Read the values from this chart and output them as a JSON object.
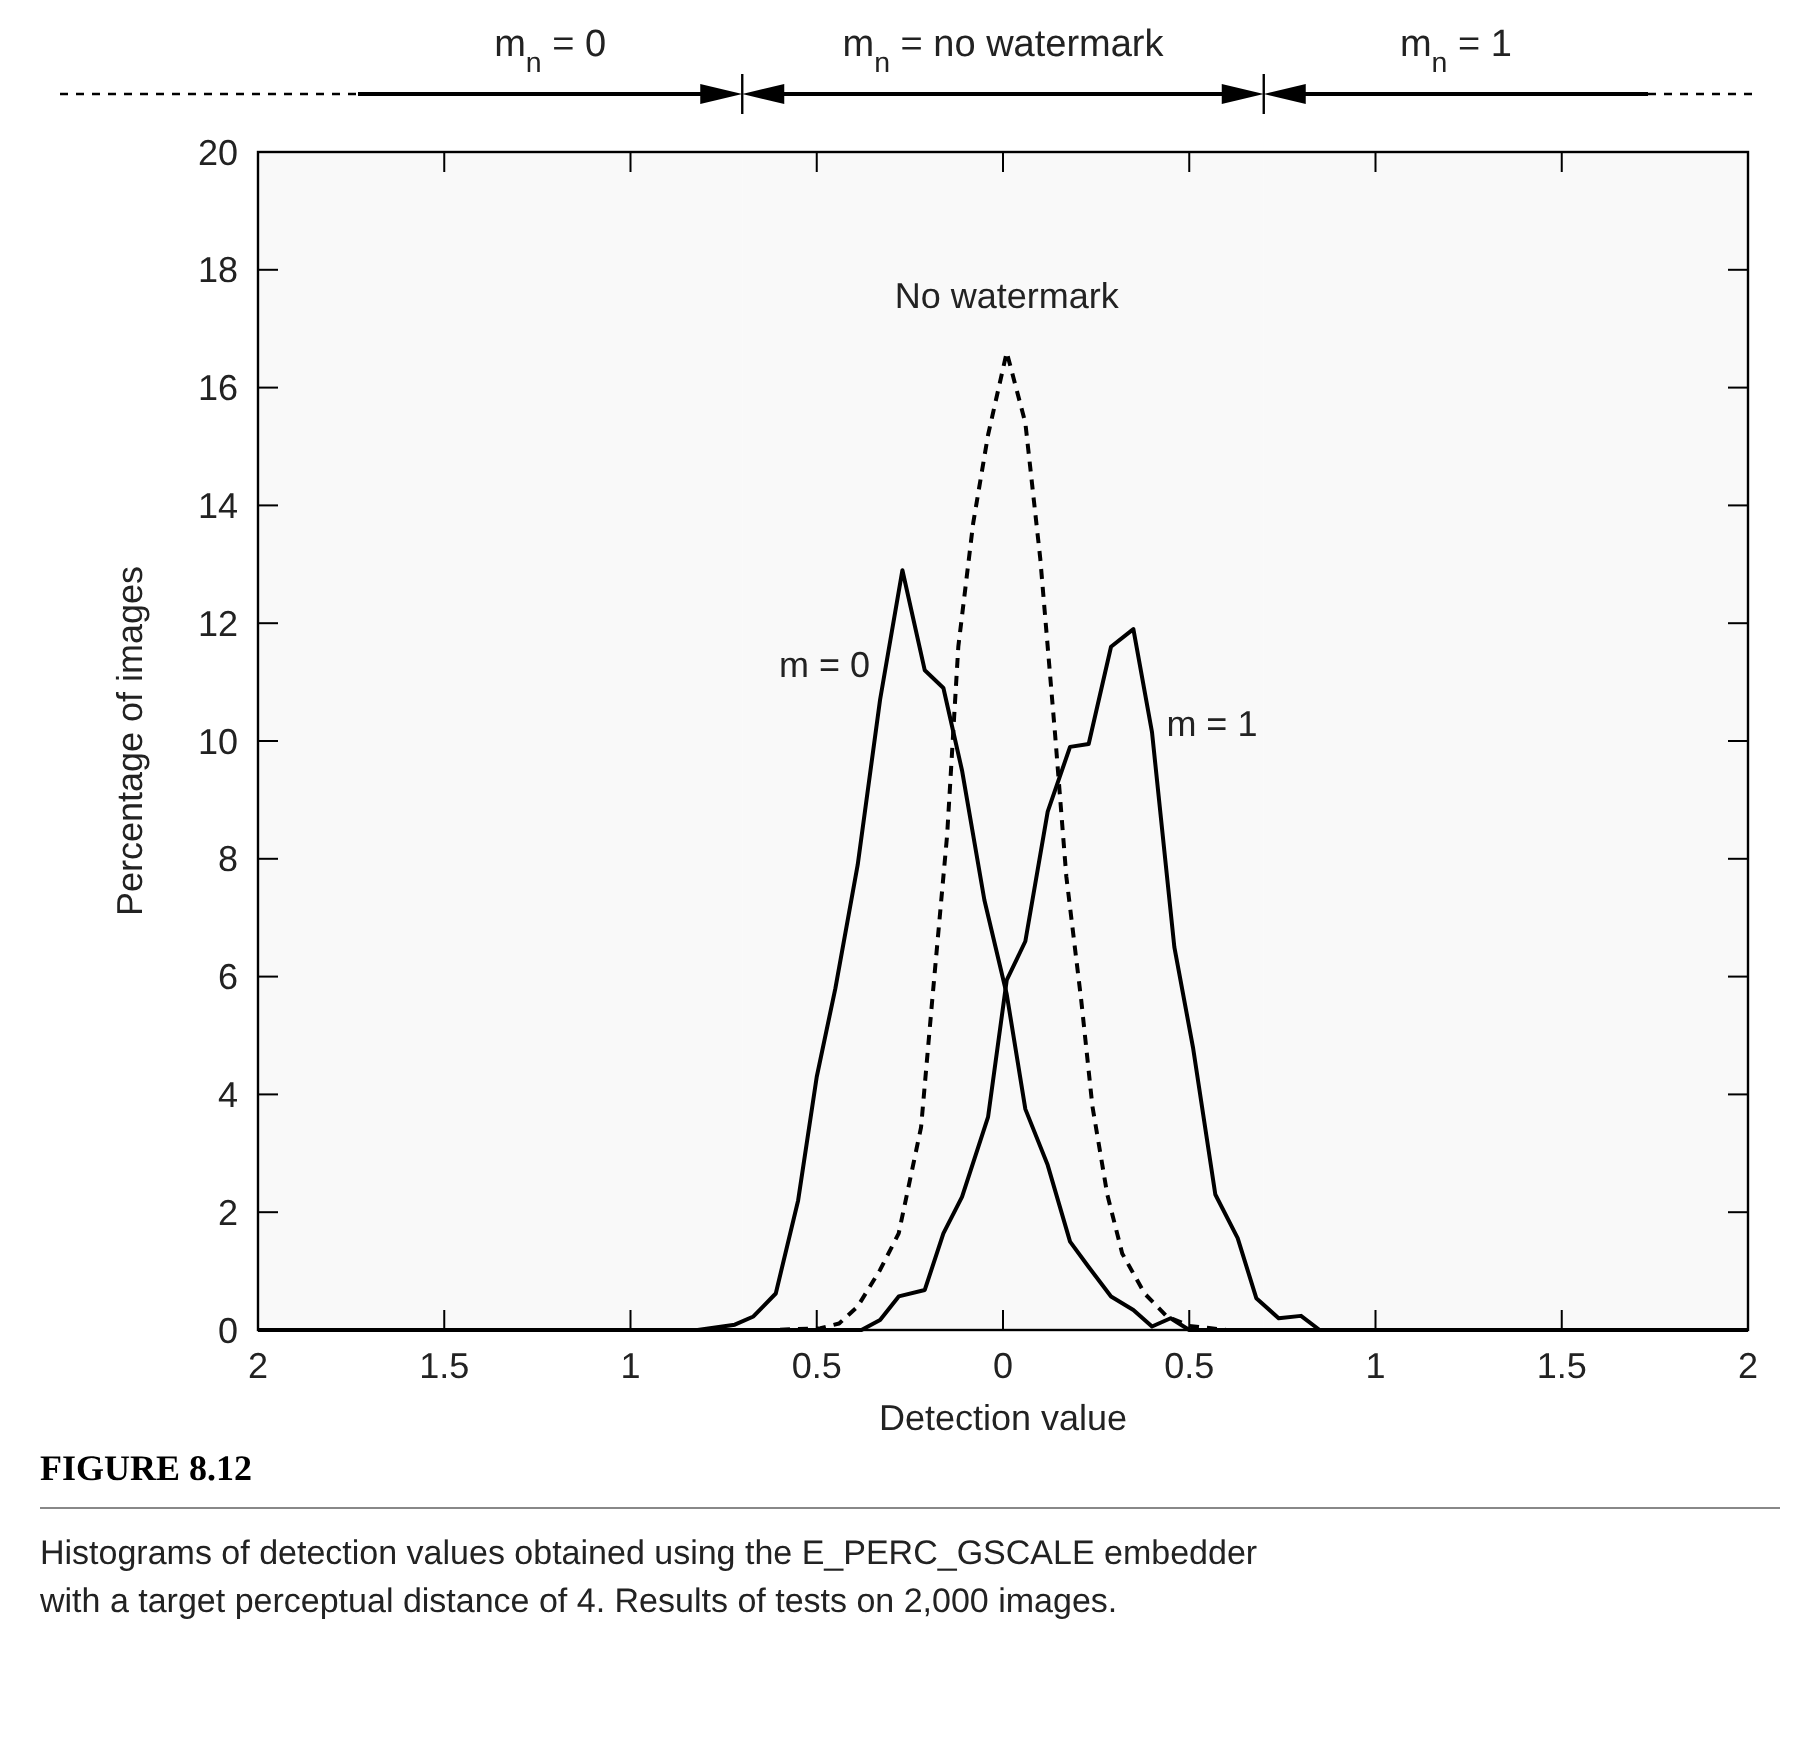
{
  "chart_data": {
    "type": "line",
    "title": "FIGURE 8.12",
    "xlabel": "Detection value",
    "ylabel": "Percentage of images",
    "annotations": [
      "Histograms of detection values obtained using the E_PERC_GSCALE embedder with a target perceptual distance of 4. Results of tests on 2,000 images."
    ],
    "xlim": [
      -2,
      2
    ],
    "xticks": [
      {
        "value": -2,
        "label": "2"
      },
      {
        "value": -1.5,
        "label": "1.5"
      },
      {
        "value": -1,
        "label": "1"
      },
      {
        "value": -0.5,
        "label": "0.5"
      },
      0,
      0.5,
      1,
      1.5,
      2
    ],
    "ylim": [
      0,
      20
    ],
    "yticks": [
      0,
      2,
      4,
      6,
      8,
      10,
      12,
      14,
      16,
      18,
      20
    ],
    "grid": false,
    "marker": "none",
    "bands": [
      {
        "axis": "x",
        "from": -2,
        "to": -0.7,
        "label": "m$_{n}$ = 0"
      },
      {
        "axis": "x",
        "from": -0.7,
        "to": 0.7,
        "label": "m$_{n}$ = no watermark"
      },
      {
        "axis": "x",
        "from": 0.7,
        "to": 2,
        "label": "m$_{n}$ = 1"
      }
    ],
    "series": [
      {
        "name": "m = 0",
        "color": "#000000",
        "line_style": "solid",
        "x": [
          -2,
          -0.82,
          -0.72,
          -0.67,
          -0.61,
          -0.55,
          -0.5,
          -0.45,
          -0.39,
          -0.33,
          -0.27,
          -0.21,
          -0.16,
          -0.11,
          -0.05,
          0.01,
          0.06,
          0.12,
          0.18,
          0.23,
          0.29,
          0.35,
          0.4,
          0.45,
          0.5,
          2
        ],
        "values": [
          0,
          0,
          0.09,
          0.23,
          0.62,
          2.2,
          4.3,
          5.8,
          7.9,
          10.7,
          12.9,
          11.2,
          10.9,
          9.5,
          7.3,
          5.7,
          3.75,
          2.8,
          1.5,
          1.07,
          0.57,
          0.34,
          0.06,
          0.2,
          0,
          0
        ]
      },
      {
        "name": "No watermark",
        "color": "#000000",
        "line_style": "dashed",
        "x": [
          -2,
          -0.62,
          -0.49,
          -0.44,
          -0.39,
          -0.33,
          -0.28,
          -0.22,
          -0.19,
          -0.15,
          -0.12,
          -0.08,
          -0.04,
          0.01,
          0.06,
          0.1,
          0.14,
          0.17,
          0.21,
          0.24,
          0.28,
          0.32,
          0.38,
          0.44,
          0.5,
          0.6,
          2
        ],
        "values": [
          0,
          0,
          0.03,
          0.11,
          0.4,
          1.02,
          1.64,
          3.44,
          5.6,
          8.4,
          11.6,
          13.7,
          15.2,
          16.6,
          15.4,
          13.1,
          10.1,
          7.7,
          5.6,
          3.8,
          2.3,
          1.3,
          0.62,
          0.23,
          0.07,
          0,
          0
        ]
      },
      {
        "name": "m = 1",
        "color": "#000000",
        "line_style": "solid",
        "x": [
          -2,
          -0.38,
          -0.33,
          -0.28,
          -0.21,
          -0.16,
          -0.11,
          -0.04,
          0.01,
          0.06,
          0.12,
          0.18,
          0.23,
          0.29,
          0.35,
          0.4,
          0.46,
          0.51,
          0.57,
          0.63,
          0.68,
          0.74,
          0.8,
          0.85,
          2
        ],
        "values": [
          0,
          0,
          0.17,
          0.57,
          0.68,
          1.64,
          2.26,
          3.62,
          5.94,
          6.6,
          8.8,
          9.9,
          9.95,
          11.6,
          11.9,
          10.15,
          6.5,
          4.8,
          2.3,
          1.56,
          0.54,
          0.2,
          0.24,
          0,
          0
        ]
      }
    ]
  }
}
